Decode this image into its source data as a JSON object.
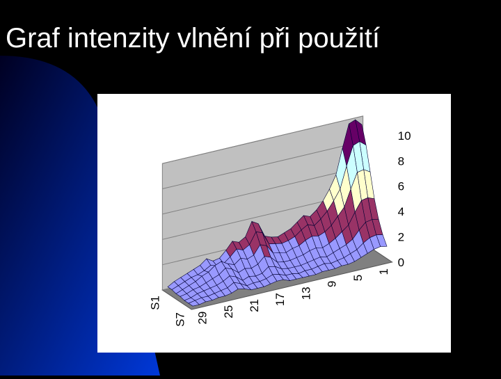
{
  "chart_data": {
    "type": "surface3d",
    "title": "Graf intenzity vlnění při použití",
    "categories": [
      1,
      null,
      null,
      null,
      5,
      null,
      null,
      null,
      9,
      null,
      null,
      null,
      13,
      null,
      null,
      null,
      17,
      null,
      null,
      null,
      21,
      null,
      null,
      null,
      25,
      null,
      null,
      null,
      29,
      null,
      null
    ],
    "series": [
      {
        "name": "S1",
        "values": [
          9.5,
          10,
          9.8,
          8,
          6,
          5,
          4.2,
          3.6,
          3.2,
          3.4,
          3,
          2.6,
          2.4,
          2.2,
          2.3,
          2.5,
          3.6,
          3.9,
          2.8,
          2.5,
          2.7,
          2.1,
          1.6,
          1.5,
          1.8,
          1.4,
          1.2,
          1,
          0.8,
          0.6,
          0.3
        ]
      },
      {
        "name": null,
        "values": [
          8.1,
          8.5,
          8.3,
          6.8,
          5.1,
          4.3,
          3.6,
          3.1,
          2.7,
          2.9,
          2.6,
          2.2,
          2,
          1.9,
          2,
          2.1,
          3.1,
          3.3,
          2.4,
          2.1,
          2.3,
          1.8,
          1.4,
          1.3,
          1.5,
          1.2,
          1,
          0.9,
          0.7,
          0.5,
          0.3
        ]
      },
      {
        "name": null,
        "values": [
          6.2,
          6.5,
          6.4,
          5.2,
          3.9,
          3.3,
          2.7,
          2.3,
          2.1,
          2.2,
          2,
          1.7,
          1.6,
          1.4,
          1.5,
          1.6,
          2.3,
          2.5,
          1.8,
          1.6,
          1.8,
          1.4,
          1.6,
          1.9,
          1.7,
          1.3,
          1.1,
          0.8,
          0.6,
          0.4,
          0.2
        ]
      },
      {
        "name": null,
        "values": [
          4.3,
          4.5,
          4.4,
          3.6,
          2.7,
          2.3,
          1.9,
          1.6,
          1.4,
          1.5,
          1.4,
          1.2,
          1.1,
          1,
          1,
          1.1,
          1.6,
          1.8,
          1.3,
          1.1,
          1.2,
          1,
          1.4,
          1.6,
          1.2,
          1,
          0.8,
          0.6,
          0.5,
          0.3,
          0.2
        ]
      },
      {
        "name": null,
        "values": [
          2.9,
          3,
          2.9,
          2.4,
          1.8,
          1.5,
          1.3,
          1.1,
          0.9,
          1,
          0.9,
          0.8,
          0.7,
          0.7,
          0.7,
          0.8,
          1.1,
          1.2,
          0.8,
          0.7,
          0.8,
          0.6,
          1,
          1.2,
          0.9,
          0.7,
          0.6,
          0.5,
          0.4,
          0.2,
          0.1
        ]
      },
      {
        "name": null,
        "values": [
          1.9,
          2,
          1.9,
          1.6,
          1.2,
          1,
          0.8,
          0.7,
          0.6,
          0.7,
          0.6,
          0.5,
          0.5,
          0.4,
          0.5,
          0.5,
          0.7,
          0.8,
          0.6,
          0.5,
          0.5,
          0.4,
          0.7,
          0.9,
          0.6,
          0.5,
          0.4,
          0.3,
          0.3,
          0.2,
          0.1
        ]
      },
      {
        "name": "S7",
        "values": [
          1.2,
          1.3,
          1.2,
          1,
          0.8,
          0.6,
          0.5,
          0.5,
          0.4,
          0.4,
          0.4,
          0.3,
          0.3,
          0.3,
          0.3,
          0.3,
          0.5,
          0.5,
          0.4,
          0.3,
          0.3,
          0.3,
          0.5,
          0.6,
          0.4,
          0.3,
          0.3,
          0.2,
          0.2,
          0.1,
          0.1
        ]
      }
    ],
    "band_colors": [
      "#9999ff",
      "#993366",
      "#ffffcc",
      "#ccffff",
      "#660066"
    ],
    "ylim": [
      0,
      10
    ],
    "yticks": [
      0,
      2,
      4,
      6,
      8,
      10
    ],
    "grid": true
  }
}
